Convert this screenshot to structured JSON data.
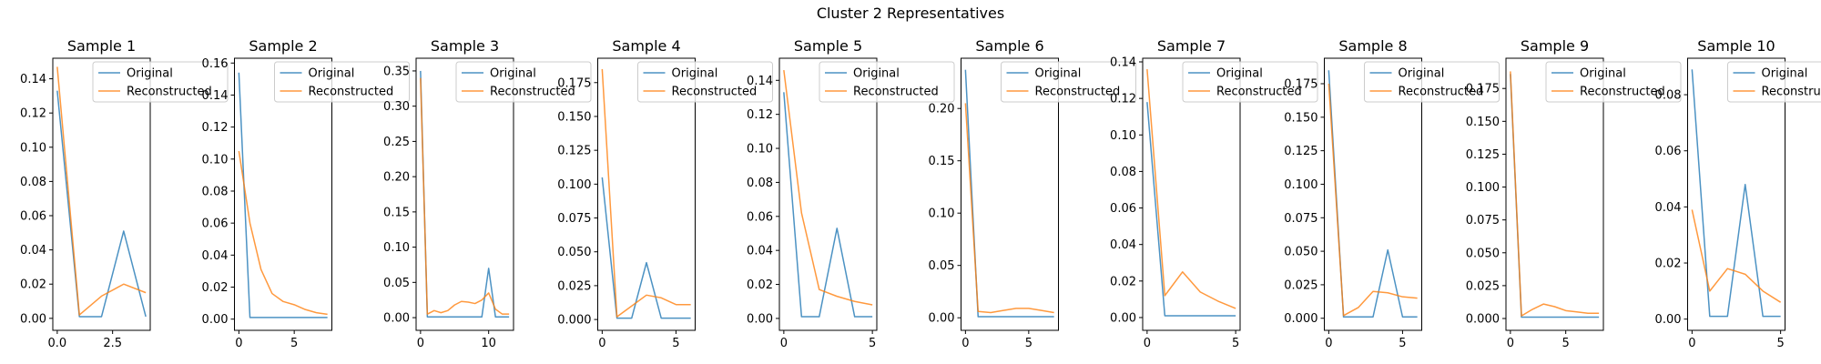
{
  "figure_title": "Cluster 2 Representatives",
  "colors": {
    "original": "#1f77b4",
    "reconstructed": "#ff7f0e"
  },
  "chart_data": [
    {
      "type": "line",
      "title": "Sample 1",
      "xlim": [
        -0.2,
        4.2
      ],
      "ylim": [
        -0.007,
        0.152
      ],
      "xticks": [
        0,
        2.5
      ],
      "xtick_labels": [
        "0.0",
        "2.5"
      ],
      "yticks": [
        0,
        0.02,
        0.04,
        0.06,
        0.08,
        0.1,
        0.12,
        0.14
      ],
      "ytick_labels": [
        "0.00",
        "0.02",
        "0.04",
        "0.06",
        "0.08",
        "0.10",
        "0.12",
        "0.14"
      ],
      "legend": "upper-right",
      "series": [
        {
          "name": "Original",
          "x": [
            0,
            1,
            2,
            3,
            4
          ],
          "values": [
            0.133,
            0.001,
            0.001,
            0.051,
            0.001
          ]
        },
        {
          "name": "Reconstructed",
          "x": [
            0,
            1,
            2,
            3,
            4
          ],
          "values": [
            0.147,
            0.002,
            0.013,
            0.02,
            0.015
          ]
        }
      ]
    },
    {
      "type": "line",
      "title": "Sample 2",
      "xlim": [
        -0.4,
        8.4
      ],
      "ylim": [
        -0.007,
        0.163
      ],
      "xticks": [
        0,
        5
      ],
      "xtick_labels": [
        "0",
        "5"
      ],
      "yticks": [
        0,
        0.02,
        0.04,
        0.06,
        0.08,
        0.1,
        0.12,
        0.14,
        0.16
      ],
      "ytick_labels": [
        "0.00",
        "0.02",
        "0.04",
        "0.06",
        "0.08",
        "0.10",
        "0.12",
        "0.14",
        "0.16"
      ],
      "legend": "upper-right",
      "series": [
        {
          "name": "Original",
          "x": [
            0,
            1,
            2,
            3,
            4,
            5,
            6,
            7,
            8
          ],
          "values": [
            0.154,
            0.001,
            0.001,
            0.001,
            0.001,
            0.001,
            0.001,
            0.001,
            0.001
          ]
        },
        {
          "name": "Reconstructed",
          "x": [
            0,
            1,
            2,
            3,
            4,
            5,
            6,
            7,
            8
          ],
          "values": [
            0.105,
            0.06,
            0.031,
            0.016,
            0.011,
            0.009,
            0.006,
            0.004,
            0.003
          ]
        }
      ]
    },
    {
      "type": "line",
      "title": "Sample 3",
      "xlim": [
        -0.65,
        13.65
      ],
      "ylim": [
        -0.018,
        0.368
      ],
      "xticks": [
        0,
        10
      ],
      "xtick_labels": [
        "0",
        "10"
      ],
      "yticks": [
        0,
        0.05,
        0.1,
        0.15,
        0.2,
        0.25,
        0.3,
        0.35
      ],
      "ytick_labels": [
        "0.00",
        "0.05",
        "0.10",
        "0.15",
        "0.20",
        "0.25",
        "0.30",
        "0.35"
      ],
      "legend": "upper-right",
      "series": [
        {
          "name": "Original",
          "x": [
            0,
            1,
            2,
            3,
            4,
            5,
            6,
            7,
            8,
            9,
            10,
            11,
            12,
            13
          ],
          "values": [
            0.35,
            0.001,
            0.001,
            0.001,
            0.001,
            0.001,
            0.001,
            0.001,
            0.001,
            0.001,
            0.07,
            0.001,
            0.001,
            0.001
          ]
        },
        {
          "name": "Reconstructed",
          "x": [
            0,
            1,
            2,
            3,
            4,
            5,
            6,
            7,
            8,
            9,
            10,
            11,
            12,
            13
          ],
          "values": [
            0.34,
            0.005,
            0.01,
            0.007,
            0.01,
            0.018,
            0.023,
            0.022,
            0.02,
            0.025,
            0.035,
            0.012,
            0.005,
            0.005
          ]
        }
      ]
    },
    {
      "type": "line",
      "title": "Sample 4",
      "xlim": [
        -0.3,
        6.3
      ],
      "ylim": [
        -0.008,
        0.193
      ],
      "xticks": [
        0,
        5
      ],
      "xtick_labels": [
        "0",
        "5"
      ],
      "yticks": [
        0,
        0.025,
        0.05,
        0.075,
        0.1,
        0.125,
        0.15,
        0.175
      ],
      "ytick_labels": [
        "0.000",
        "0.025",
        "0.050",
        "0.075",
        "0.100",
        "0.125",
        "0.150",
        "0.175"
      ],
      "legend": "upper-right",
      "series": [
        {
          "name": "Original",
          "x": [
            0,
            1,
            2,
            3,
            4,
            5,
            6
          ],
          "values": [
            0.105,
            0.001,
            0.001,
            0.042,
            0.001,
            0.001,
            0.001
          ]
        },
        {
          "name": "Reconstructed",
          "x": [
            0,
            1,
            2,
            3,
            4,
            5,
            6
          ],
          "values": [
            0.185,
            0.002,
            0.01,
            0.018,
            0.016,
            0.011,
            0.011
          ]
        }
      ]
    },
    {
      "type": "line",
      "title": "Sample 5",
      "xlim": [
        -0.25,
        5.25
      ],
      "ylim": [
        -0.007,
        0.153
      ],
      "xticks": [
        0,
        5
      ],
      "xtick_labels": [
        "0",
        "5"
      ],
      "yticks": [
        0,
        0.02,
        0.04,
        0.06,
        0.08,
        0.1,
        0.12,
        0.14
      ],
      "ytick_labels": [
        "0.00",
        "0.02",
        "0.04",
        "0.06",
        "0.08",
        "0.10",
        "0.12",
        "0.14"
      ],
      "legend": "upper-right",
      "series": [
        {
          "name": "Original",
          "x": [
            0,
            1,
            2,
            3,
            4,
            5
          ],
          "values": [
            0.133,
            0.001,
            0.001,
            0.053,
            0.001,
            0.001
          ]
        },
        {
          "name": "Reconstructed",
          "x": [
            0,
            1,
            2,
            3,
            4,
            5
          ],
          "values": [
            0.146,
            0.062,
            0.017,
            0.013,
            0.01,
            0.008
          ]
        }
      ]
    },
    {
      "type": "line",
      "title": "Sample 6",
      "xlim": [
        -0.35,
        7.35
      ],
      "ylim": [
        -0.012,
        0.248
      ],
      "xticks": [
        0,
        5
      ],
      "xtick_labels": [
        "0",
        "5"
      ],
      "yticks": [
        0,
        0.05,
        0.1,
        0.15,
        0.2
      ],
      "ytick_labels": [
        "0.00",
        "0.05",
        "0.10",
        "0.15",
        "0.20"
      ],
      "legend": "upper-right",
      "series": [
        {
          "name": "Original",
          "x": [
            0,
            1,
            2,
            3,
            4,
            5,
            6,
            7
          ],
          "values": [
            0.237,
            0.001,
            0.001,
            0.001,
            0.001,
            0.001,
            0.001,
            0.001
          ]
        },
        {
          "name": "Reconstructed",
          "x": [
            0,
            1,
            2,
            3,
            4,
            5,
            6,
            7
          ],
          "values": [
            0.205,
            0.006,
            0.005,
            0.007,
            0.009,
            0.009,
            0.007,
            0.005
          ]
        }
      ]
    },
    {
      "type": "line",
      "title": "Sample 7",
      "xlim": [
        -0.25,
        5.25
      ],
      "ylim": [
        -0.007,
        0.142
      ],
      "xticks": [
        0,
        5
      ],
      "xtick_labels": [
        "0",
        "5"
      ],
      "yticks": [
        0,
        0.02,
        0.04,
        0.06,
        0.08,
        0.1,
        0.12,
        0.14
      ],
      "ytick_labels": [
        "0.00",
        "0.02",
        "0.04",
        "0.06",
        "0.08",
        "0.10",
        "0.12",
        "0.14"
      ],
      "legend": "upper-right",
      "series": [
        {
          "name": "Original",
          "x": [
            0,
            1,
            2,
            3,
            4,
            5
          ],
          "values": [
            0.118,
            0.001,
            0.001,
            0.001,
            0.001,
            0.001
          ]
        },
        {
          "name": "Reconstructed",
          "x": [
            0,
            1,
            2,
            3,
            4,
            5
          ],
          "values": [
            0.136,
            0.012,
            0.025,
            0.014,
            0.009,
            0.005
          ]
        }
      ]
    },
    {
      "type": "line",
      "title": "Sample 8",
      "xlim": [
        -0.3,
        6.3
      ],
      "ylim": [
        -0.009,
        0.194
      ],
      "xticks": [
        0,
        5
      ],
      "xtick_labels": [
        "0",
        "5"
      ],
      "yticks": [
        0,
        0.025,
        0.05,
        0.075,
        0.1,
        0.125,
        0.15,
        0.175
      ],
      "ytick_labels": [
        "0.000",
        "0.025",
        "0.050",
        "0.075",
        "0.100",
        "0.125",
        "0.150",
        "0.175"
      ],
      "legend": "upper-right",
      "series": [
        {
          "name": "Original",
          "x": [
            0,
            1,
            2,
            3,
            4,
            5,
            6
          ],
          "values": [
            0.185,
            0.001,
            0.001,
            0.001,
            0.051,
            0.001,
            0.001
          ]
        },
        {
          "name": "Reconstructed",
          "x": [
            0,
            1,
            2,
            3,
            4,
            5,
            6
          ],
          "values": [
            0.175,
            0.002,
            0.008,
            0.02,
            0.019,
            0.016,
            0.015
          ]
        }
      ]
    },
    {
      "type": "line",
      "title": "Sample 9",
      "xlim": [
        -0.4,
        8.4
      ],
      "ylim": [
        -0.009,
        0.198
      ],
      "xticks": [
        0,
        5
      ],
      "xtick_labels": [
        "0",
        "5"
      ],
      "yticks": [
        0,
        0.025,
        0.05,
        0.075,
        0.1,
        0.125,
        0.15,
        0.175
      ],
      "ytick_labels": [
        "0.000",
        "0.025",
        "0.050",
        "0.075",
        "0.100",
        "0.125",
        "0.150",
        "0.175"
      ],
      "legend": "upper-right",
      "series": [
        {
          "name": "Original",
          "x": [
            0,
            1,
            2,
            3,
            4,
            5,
            6,
            7,
            8
          ],
          "values": [
            0.186,
            0.001,
            0.001,
            0.001,
            0.001,
            0.001,
            0.001,
            0.001,
            0.001
          ]
        },
        {
          "name": "Reconstructed",
          "x": [
            0,
            1,
            2,
            3,
            4,
            5,
            6,
            7,
            8
          ],
          "values": [
            0.188,
            0.002,
            0.007,
            0.011,
            0.009,
            0.006,
            0.005,
            0.004,
            0.004
          ]
        }
      ]
    },
    {
      "type": "line",
      "title": "Sample 10",
      "xlim": [
        -0.25,
        5.25
      ],
      "ylim": [
        -0.004,
        0.093
      ],
      "xticks": [
        0,
        5
      ],
      "xtick_labels": [
        "0",
        "5"
      ],
      "yticks": [
        0,
        0.02,
        0.04,
        0.06,
        0.08
      ],
      "ytick_labels": [
        "0.00",
        "0.02",
        "0.04",
        "0.06",
        "0.08"
      ],
      "legend": "upper-right",
      "series": [
        {
          "name": "Original",
          "x": [
            0,
            1,
            2,
            3,
            4,
            5
          ],
          "values": [
            0.089,
            0.001,
            0.001,
            0.048,
            0.001,
            0.001
          ]
        },
        {
          "name": "Reconstructed",
          "x": [
            0,
            1,
            2,
            3,
            4,
            5
          ],
          "values": [
            0.039,
            0.01,
            0.018,
            0.016,
            0.01,
            0.006
          ]
        }
      ]
    }
  ]
}
